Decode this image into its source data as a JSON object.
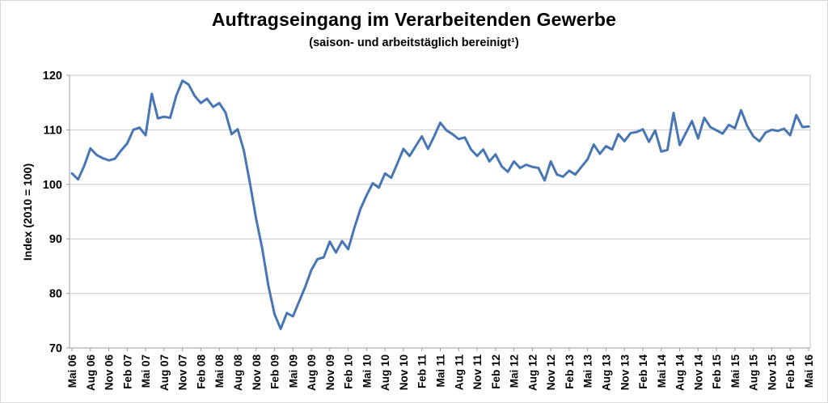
{
  "chart": {
    "title": "Auftragseingang im Verarbeitenden Gewerbe",
    "subtitle": "(saison- und arbeitstäglich bereinigt¹)",
    "y_axis_title": "Index (2010 = 100)"
  },
  "chart_data": {
    "type": "line",
    "title": "Auftragseingang im Verarbeitenden Gewerbe",
    "subtitle": "(saison- und arbeitstäglich bereinigt¹)",
    "ylabel": "Index (2010 = 100)",
    "xlabel": "",
    "ylim": [
      70,
      120
    ],
    "yticks": [
      70,
      80,
      90,
      100,
      110,
      120
    ],
    "grid": true,
    "legend": false,
    "frequency": "monthly",
    "months_per_tick": 3,
    "tick_labels": [
      "Mai 06",
      "Aug 06",
      "Nov 06",
      "Feb 07",
      "Mai 07",
      "Aug 07",
      "Nov 07",
      "Feb 08",
      "Mai 08",
      "Aug 08",
      "Nov 08",
      "Feb 09",
      "Mai 09",
      "Aug 09",
      "Nov 09",
      "Feb 10",
      "Mai 10",
      "Aug 10",
      "Nov 10",
      "Feb 11",
      "Mai 11",
      "Aug 11",
      "Nov 11",
      "Feb 12",
      "Mai 12",
      "Aug 12",
      "Nov 12",
      "Feb 13",
      "Mai 13",
      "Aug 13",
      "Nov 13",
      "Feb 14",
      "Mai 14",
      "Aug 14",
      "Nov 14",
      "Feb 15",
      "Mai 15",
      "Aug 15",
      "Nov 15",
      "Feb 16",
      "Mai 16"
    ],
    "line_color": "#4876B4",
    "values": [
      102.0,
      100.9,
      103.4,
      106.6,
      105.4,
      104.8,
      104.4,
      104.7,
      106.2,
      107.5,
      110.0,
      110.4,
      109.0,
      116.6,
      112.1,
      112.4,
      112.2,
      116.3,
      119.0,
      118.3,
      116.2,
      114.9,
      115.7,
      114.2,
      114.9,
      113.2,
      109.2,
      110.1,
      106.2,
      100.2,
      93.7,
      88.2,
      81.4,
      76.2,
      73.5,
      76.4,
      75.8,
      78.5,
      81.2,
      84.3,
      86.3,
      86.6,
      89.5,
      87.5,
      89.6,
      88.1,
      92.0,
      95.5,
      98.0,
      100.2,
      99.4,
      102.0,
      101.2,
      103.8,
      106.5,
      105.2,
      107.0,
      108.8,
      106.5,
      108.8,
      111.3,
      109.9,
      109.2,
      108.3,
      108.6,
      106.4,
      105.2,
      106.4,
      104.2,
      105.5,
      103.3,
      102.3,
      104.2,
      103.0,
      103.6,
      103.2,
      103.0,
      100.7,
      104.2,
      101.8,
      101.4,
      102.5,
      101.8,
      103.2,
      104.6,
      107.3,
      105.6,
      107.0,
      106.4,
      109.2,
      107.9,
      109.4,
      109.6,
      110.1,
      107.8,
      109.9,
      106.0,
      106.3,
      113.1,
      107.2,
      109.4,
      111.6,
      108.4,
      112.2,
      110.5,
      109.9,
      109.3,
      110.9,
      110.3,
      113.6,
      110.7,
      108.8,
      107.9,
      109.5,
      110.0,
      109.8,
      110.2,
      109.0,
      112.7,
      110.5,
      110.6
    ]
  },
  "colors": {
    "line": "#4876B4",
    "gridline": "#c8c8c8",
    "axis": "#9b9b9b",
    "text": "#000000"
  }
}
